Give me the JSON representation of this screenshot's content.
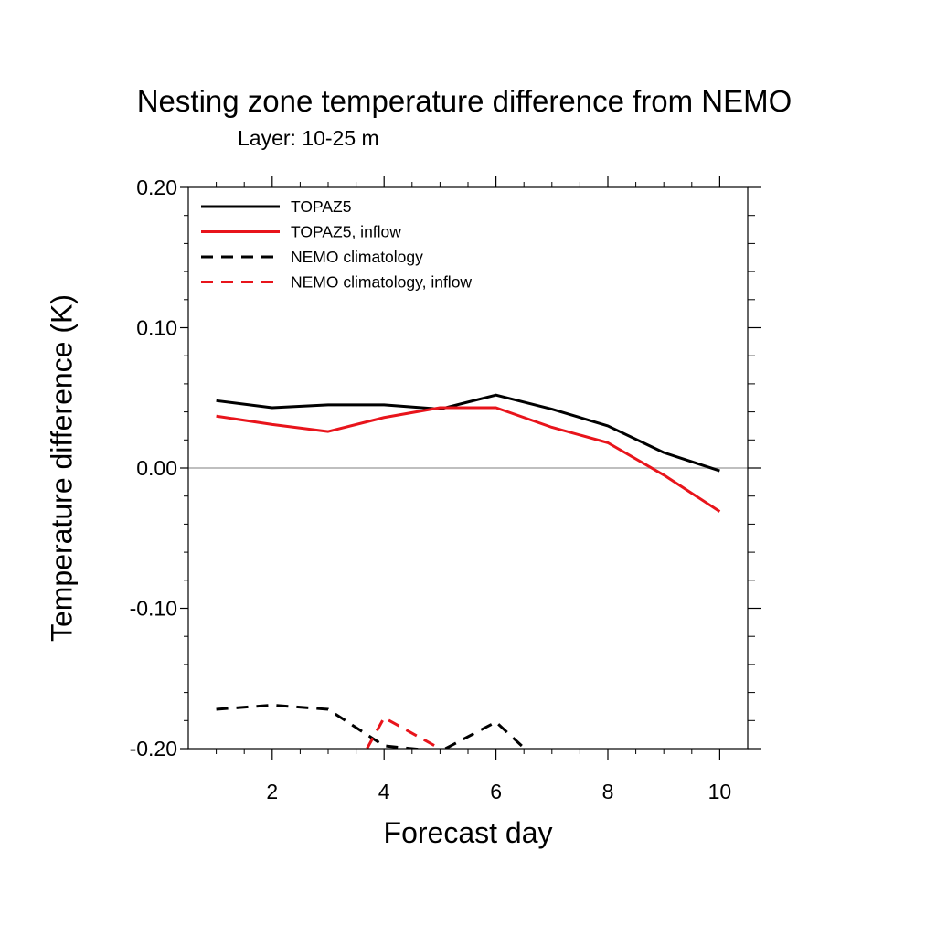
{
  "chart_data": {
    "type": "line",
    "title": "Nesting zone temperature difference from NEMO",
    "subtitle": "Layer: 10-25 m",
    "xlabel": "Forecast day",
    "ylabel": "Temperature difference (K)",
    "xlim": [
      0.5,
      10.5
    ],
    "ylim": [
      -0.2,
      0.2
    ],
    "xticks": [
      2,
      4,
      6,
      8,
      10
    ],
    "xtick_labels": [
      "2",
      "4",
      "6",
      "8",
      "10"
    ],
    "yticks": [
      -0.2,
      -0.1,
      0.0,
      0.1,
      0.2
    ],
    "ytick_labels": [
      "-0.20",
      "-0.10",
      "0.00",
      "0.10",
      "0.20"
    ],
    "zero_line": true,
    "legend_position": "top-left",
    "x": [
      1,
      2,
      3,
      4,
      5,
      6,
      7,
      8,
      9,
      10
    ],
    "series": [
      {
        "name": "TOPAZ5",
        "color": "#000000",
        "dash": "solid",
        "values": [
          0.048,
          0.043,
          0.045,
          0.045,
          0.042,
          0.052,
          0.042,
          0.03,
          0.011,
          -0.002
        ]
      },
      {
        "name": "TOPAZ5, inflow",
        "color": "#e8141b",
        "dash": "solid",
        "values": [
          0.037,
          0.031,
          0.026,
          0.036,
          0.043,
          0.043,
          0.029,
          0.018,
          -0.005,
          -0.031
        ]
      },
      {
        "name": "NEMO climatology",
        "color": "#000000",
        "dash": "dashed",
        "values": [
          -0.172,
          -0.169,
          -0.172,
          -0.198,
          -0.202,
          -0.181,
          -0.218,
          null,
          null,
          null
        ]
      },
      {
        "name": "NEMO climatology, inflow",
        "color": "#e8141b",
        "dash": "dashed",
        "values": [
          null,
          null,
          null,
          -0.178,
          -0.2,
          null,
          null,
          null,
          null,
          null
        ],
        "below_start": -0.25
      }
    ]
  }
}
